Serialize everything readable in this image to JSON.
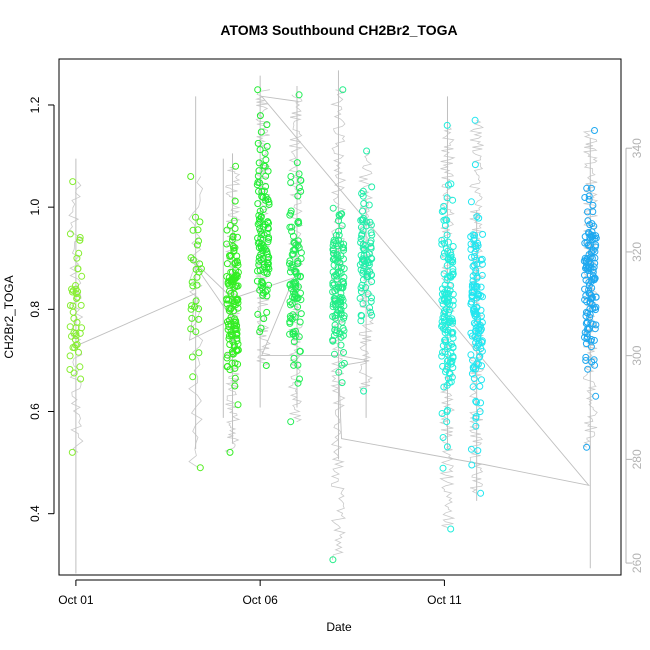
{
  "chart_data": {
    "type": "scatter",
    "title": "ATOM3 Southbound CH2Br2_TOGA",
    "xlabel": "Date",
    "ylabel": "CH2Br2_TOGA",
    "x_ticks": [
      "Oct 01",
      "Oct 06",
      "Oct 11"
    ],
    "x_tick_dates": [
      "2023-10-01",
      "2023-10-06",
      "2023-10-11"
    ],
    "xlim": [
      "2023-09-30T13:00",
      "2023-10-15T19:00"
    ],
    "ylim": [
      0.28,
      1.29
    ],
    "y_ticks": [
      0.4,
      0.6,
      0.8,
      1.0,
      1.2
    ],
    "y_tick_labels": [
      "0.4",
      "0.6",
      "0.8",
      "1.0",
      "1.2"
    ],
    "right_axis": {
      "ylim": [
        257.7,
        357.2
      ],
      "ticks": [
        260,
        280,
        300,
        320,
        340
      ],
      "tick_labels": [
        "260",
        "280",
        "300",
        "320",
        "340"
      ],
      "color": "#b3b3b3"
    },
    "marker": "open-circle",
    "color_scale": "green-to-blue by date",
    "groups": [
      {
        "date": "2023-10-01T00:00",
        "color": "#88ee33",
        "min": 0.52,
        "max": 1.05,
        "center": 0.8,
        "spread": 0.11,
        "n": 45
      },
      {
        "date": "2023-10-04T06:00",
        "color": "#55ee22",
        "min": 0.49,
        "max": 1.06,
        "center": 0.84,
        "spread": 0.13,
        "n": 30
      },
      {
        "date": "2023-10-05T06:00",
        "color": "#33ee22",
        "min": 0.52,
        "max": 1.08,
        "center": 0.8,
        "spread": 0.12,
        "n": 130
      },
      {
        "date": "2023-10-06T02:00",
        "color": "#22ee33",
        "min": 0.69,
        "max": 1.23,
        "center": 0.95,
        "spread": 0.13,
        "n": 110
      },
      {
        "date": "2023-10-06T23:00",
        "color": "#22ee55",
        "min": 0.58,
        "max": 1.22,
        "center": 0.88,
        "spread": 0.13,
        "n": 100
      },
      {
        "date": "2023-10-08T03:00",
        "color": "#22ee88",
        "min": 0.31,
        "max": 1.23,
        "center": 0.84,
        "spread": 0.11,
        "n": 120
      },
      {
        "date": "2023-10-08T21:00",
        "color": "#22eeaa",
        "min": 0.64,
        "max": 1.11,
        "center": 0.9,
        "spread": 0.09,
        "n": 80
      },
      {
        "date": "2023-10-11T02:00",
        "color": "#22eedd",
        "min": 0.37,
        "max": 1.16,
        "center": 0.82,
        "spread": 0.15,
        "n": 140
      },
      {
        "date": "2023-10-11T21:00",
        "color": "#22e6f0",
        "min": 0.44,
        "max": 1.17,
        "center": 0.78,
        "spread": 0.15,
        "n": 130
      },
      {
        "date": "2023-10-14T23:00",
        "color": "#1ea8f0",
        "min": 0.53,
        "max": 1.15,
        "center": 0.86,
        "spread": 0.12,
        "n": 130
      }
    ],
    "altitude_segments": [
      {
        "date": "2023-10-01T00:00",
        "ymin": 258,
        "ymax": 338
      },
      {
        "date": "2023-10-04T06:00",
        "ymin": 282,
        "ymax": 350
      },
      {
        "date": "2023-10-05T00:00",
        "ymin": 288,
        "ymax": 338
      },
      {
        "date": "2023-10-05T06:00",
        "ymin": 283,
        "ymax": 339
      },
      {
        "date": "2023-10-06T00:00",
        "ymin": 290,
        "ymax": 354
      },
      {
        "date": "2023-10-07T00:00",
        "ymin": 290,
        "ymax": 352
      },
      {
        "date": "2023-10-08T03:00",
        "ymin": 280,
        "ymax": 355
      },
      {
        "date": "2023-10-08T21:00",
        "ymin": 288,
        "ymax": 330
      },
      {
        "date": "2023-10-11T02:00",
        "ymin": 282,
        "ymax": 350
      },
      {
        "date": "2023-10-11T21:00",
        "ymin": 272,
        "ymax": 328
      },
      {
        "date": "2023-10-14T23:00",
        "ymin": 259,
        "ymax": 342
      }
    ],
    "altitude_path": [
      [
        "2023-10-01T01:00",
        302
      ],
      [
        "2023-10-04T06:00",
        312
      ],
      [
        "2023-10-04T02:00",
        303
      ],
      [
        "2023-10-05T06:00",
        307
      ],
      [
        "2023-10-04T02:00",
        319
      ],
      [
        "2023-10-05T06:00",
        311
      ],
      [
        "2023-10-06T22:00",
        315
      ],
      [
        "2023-10-06T01:00",
        300
      ],
      [
        "2023-10-08T03:00",
        300
      ],
      [
        "2023-10-08T23:00",
        299
      ],
      [
        "2023-10-08T03:00",
        298
      ],
      [
        "2023-10-08T05:00",
        284
      ],
      [
        "2023-10-12T02:00",
        279
      ],
      [
        "2023-10-14T22:00",
        275
      ],
      [
        "2023-10-06T01:00",
        350
      ],
      [
        "2023-10-07T01:00",
        349
      ]
    ],
    "grid": false,
    "legend": "none"
  }
}
